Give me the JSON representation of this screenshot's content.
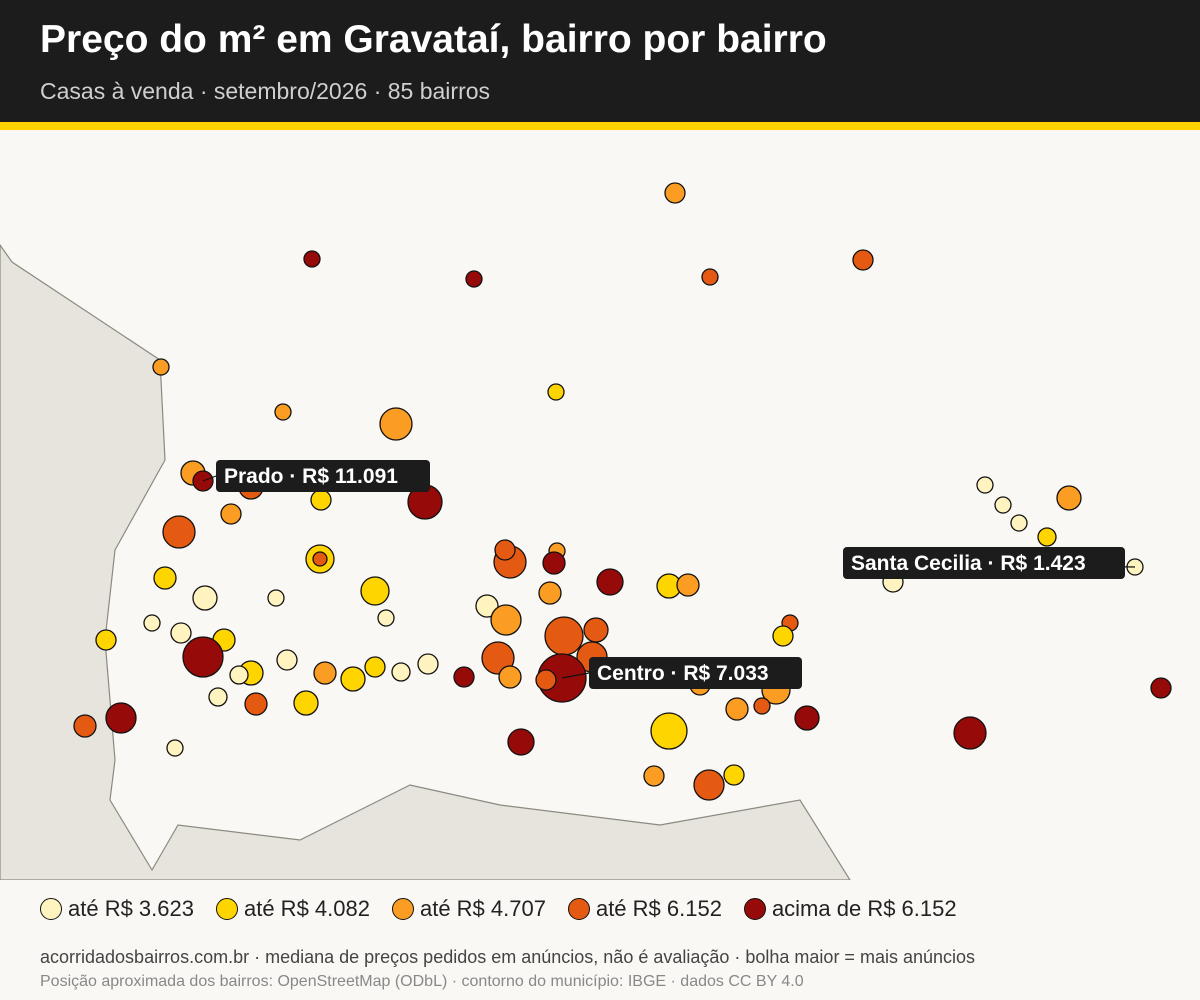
{
  "header": {
    "title": "Preço do m² em Gravataí, bairro por bairro",
    "subtitle": "Casas à venda · setembro/2026 · 85 bairros"
  },
  "labels": [
    "Prado · R$ 11.091",
    "Santa Cecilia · R$ 1.423",
    "Centro · R$ 7.033"
  ],
  "legend": [
    {
      "label": "até R$ 3.623",
      "color": "#fff3c0"
    },
    {
      "label": "até R$ 4.082",
      "color": "#ffd500"
    },
    {
      "label": "até R$ 4.707",
      "color": "#fb9c23"
    },
    {
      "label": "até R$ 6.152",
      "color": "#e55a12"
    },
    {
      "label": "acima de R$ 6.152",
      "color": "#970a0a"
    }
  ],
  "footer": {
    "note": "acorridadosbairros.com.br · mediana de preços pedidos em anúncios, não é avaliação · bolha maior = mais anúncios",
    "credits": "Posição aproximada dos bairros: OpenStreetMap (ODbL) · contorno do município: IBGE · dados CC BY 4.0"
  }
}
